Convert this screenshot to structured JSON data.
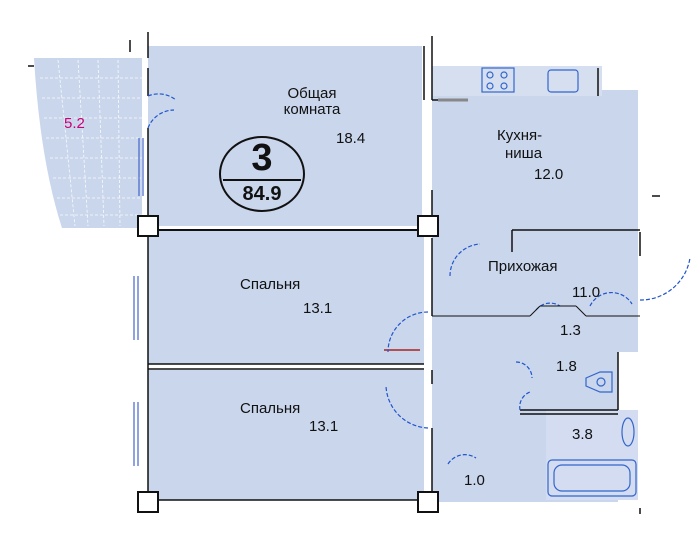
{
  "plan": {
    "rooms_count": "3",
    "total_area": "84.9",
    "colors": {
      "floor": "#c9d6ec",
      "floor_light": "#e6ecf7",
      "wall": "#111111",
      "door_swing": "#2255cc",
      "fixture": "#3366cc",
      "balcony_label": "#cc0077"
    },
    "rooms": {
      "balcony_area": "5.2",
      "living_name_line1": "Общая",
      "living_name_line2": "комната",
      "living_area": "18.4",
      "kitchen_name_line1": "Кухня-",
      "kitchen_name_line2": "ниша",
      "kitchen_area": "12.0",
      "hall_name": "Прихожая",
      "hall_area": "11.0",
      "bedroom1_name": "Спальня",
      "bedroom1_area": "13.1",
      "bedroom2_name": "Спальня",
      "bedroom2_area": "13.1",
      "closet_a_area": "1.3",
      "wc_area": "1.8",
      "bath_area": "3.8",
      "closet_b_area": "1.0"
    }
  }
}
